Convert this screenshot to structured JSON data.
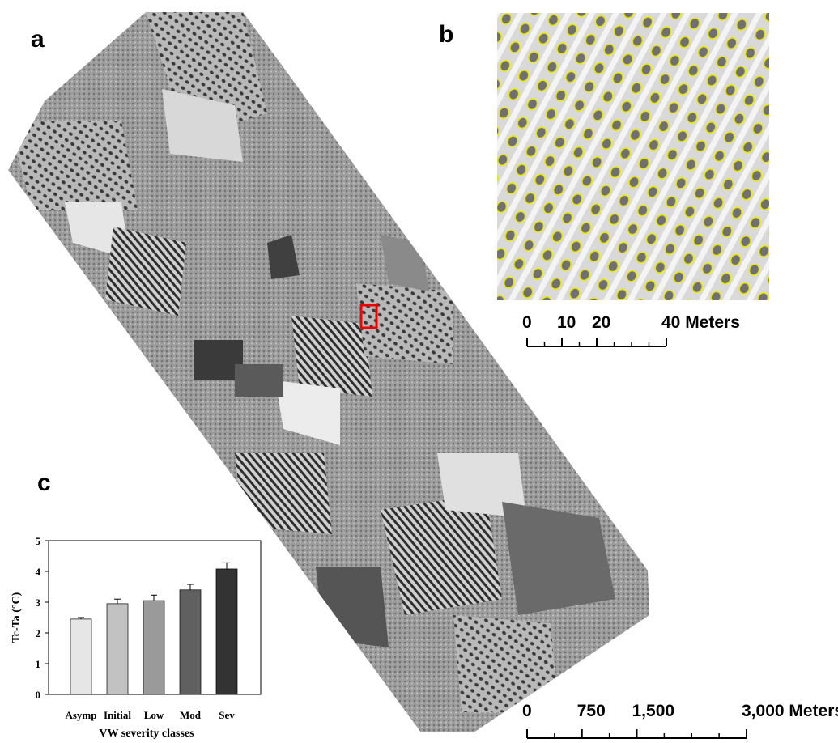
{
  "panels": {
    "a": "a",
    "b": "b",
    "c": "c"
  },
  "scale_b": {
    "ticks": [
      0,
      10,
      20,
      {
        "value": 40,
        "label": "40 Meters"
      }
    ],
    "range": [
      0,
      40
    ]
  },
  "scale_a": {
    "ticks": [
      0,
      750,
      {
        "value": 1500,
        "label": "1,500"
      },
      {
        "value": 3000,
        "label": "3,000 Meters"
      }
    ],
    "range": [
      0,
      3000
    ]
  },
  "chart_data": {
    "type": "bar",
    "xlabel": "VW severity classes",
    "ylabel": "Tc-Ta (°C)",
    "categories": [
      "Asymp",
      "Initial",
      "Low",
      "Mod",
      "Sev"
    ],
    "values": [
      2.45,
      2.95,
      3.05,
      3.4,
      4.08
    ],
    "errors": [
      0.05,
      0.15,
      0.18,
      0.18,
      0.2
    ],
    "colors": [
      "#e6e6e6",
      "#c2c2c2",
      "#9a9a9a",
      "#606060",
      "#333333"
    ],
    "ylim": [
      0,
      5
    ],
    "yticks": [
      0,
      1,
      2,
      3,
      4,
      5
    ]
  }
}
